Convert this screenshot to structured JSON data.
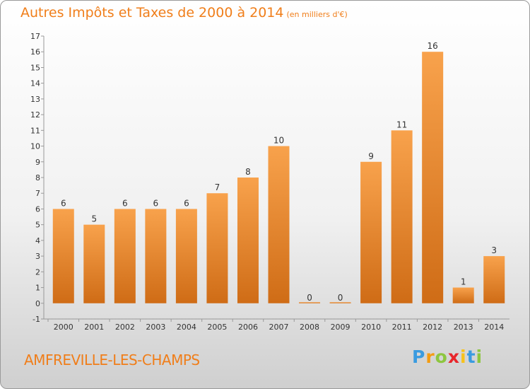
{
  "title": "Autres Impôts et Taxes de 2000 à 2014",
  "title_unit": "(en milliers d'€)",
  "commune": "AMFREVILLE-LES-CHAMPS",
  "logo": {
    "letters": [
      "P",
      "r",
      "o",
      "x",
      "i",
      "t",
      "i"
    ],
    "colors": [
      "#3a9be0",
      "#f39c12",
      "#8dc63f",
      "#e8262b",
      "#f7c21a",
      "#3a9be0",
      "#8dc63f"
    ]
  },
  "colors": {
    "bar": "#f07e1a",
    "accent": "#f07e1a"
  },
  "chart_data": {
    "type": "bar",
    "categories": [
      "2000",
      "2001",
      "2002",
      "2003",
      "2004",
      "2005",
      "2006",
      "2007",
      "2008",
      "2009",
      "2010",
      "2011",
      "2012",
      "2013",
      "2014"
    ],
    "values": [
      6,
      5,
      6,
      6,
      6,
      7,
      8,
      10,
      0,
      0,
      9,
      11,
      16,
      1,
      3
    ],
    "ylim": [
      -1,
      17
    ],
    "yticks": [
      -1,
      0,
      1,
      2,
      3,
      4,
      5,
      6,
      7,
      8,
      9,
      10,
      11,
      12,
      13,
      14,
      15,
      16,
      17
    ],
    "grid": false,
    "legend": "none"
  }
}
